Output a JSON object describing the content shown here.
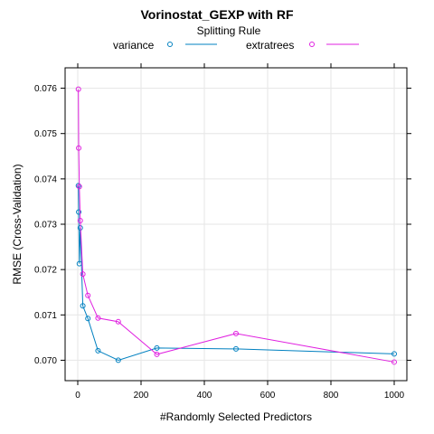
{
  "chart_data": {
    "type": "line",
    "title": "Vorinostat_GEXP with RF",
    "xlabel": "#Randomly Selected Predictors",
    "ylabel": "RMSE (Cross-Validation)",
    "xlim": [
      -40,
      1040
    ],
    "ylim": [
      0.06955,
      0.07645
    ],
    "xticks": [
      0,
      200,
      400,
      600,
      800,
      1000
    ],
    "xtick_labels": [
      "0",
      "200",
      "400",
      "600",
      "800",
      "1000"
    ],
    "yticks": [
      0.07,
      0.071,
      0.072,
      0.073,
      0.074,
      0.075,
      0.076
    ],
    "ytick_labels": [
      "0.070",
      "0.071",
      "0.072",
      "0.073",
      "0.074",
      "0.075",
      "0.076"
    ],
    "grid": true,
    "legend": {
      "title": "Splitting Rule",
      "position": "top"
    },
    "series": [
      {
        "name": "variance",
        "color": "#0080c0",
        "points": [
          [
            2,
            0.07385
          ],
          [
            3,
            0.07327
          ],
          [
            5,
            0.07213
          ],
          [
            8,
            0.07292
          ],
          [
            16,
            0.0712
          ],
          [
            32,
            0.07092
          ],
          [
            64,
            0.07021
          ],
          [
            128,
            0.07
          ],
          [
            250,
            0.07027
          ],
          [
            500,
            0.07025
          ],
          [
            1000,
            0.07014
          ]
        ]
      },
      {
        "name": "extratrees",
        "color": "#e020e0",
        "points": [
          [
            2,
            0.07598
          ],
          [
            3,
            0.07468
          ],
          [
            5,
            0.07383
          ],
          [
            8,
            0.07308
          ],
          [
            16,
            0.0719
          ],
          [
            32,
            0.07143
          ],
          [
            64,
            0.07093
          ],
          [
            128,
            0.07085
          ],
          [
            250,
            0.07013
          ],
          [
            500,
            0.07059
          ],
          [
            1000,
            0.06996
          ]
        ]
      }
    ]
  }
}
